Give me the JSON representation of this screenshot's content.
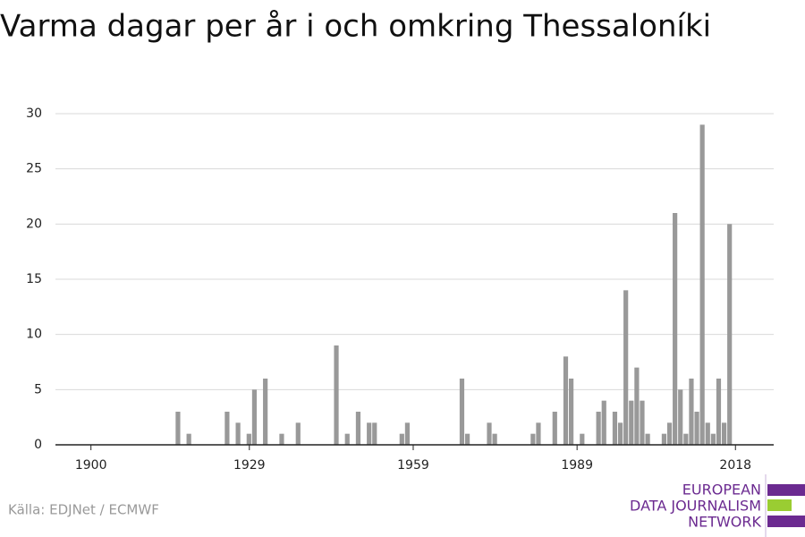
{
  "chart_data": {
    "type": "bar",
    "title": "Varma dagar per år i och omkring Thessaloníki",
    "source": "Källa: EDJNet / ECMWF",
    "logo": [
      "EUROPEAN",
      "DATA JOURNALISM",
      "NETWORK"
    ],
    "x": [
      1916,
      1918,
      1925,
      1927,
      1929,
      1930,
      1932,
      1935,
      1938,
      1945,
      1947,
      1949,
      1951,
      1952,
      1957,
      1958,
      1968,
      1969,
      1973,
      1974,
      1981,
      1982,
      1985,
      1987,
      1988,
      1990,
      1993,
      1994,
      1996,
      1997,
      1998,
      1999,
      2000,
      2001,
      2002,
      2005,
      2006,
      2007,
      2008,
      2009,
      2010,
      2011,
      2012,
      2013,
      2014,
      2015,
      2016,
      2017
    ],
    "values": [
      3,
      1,
      3,
      2,
      1,
      5,
      6,
      1,
      2,
      9,
      1,
      3,
      2,
      2,
      1,
      2,
      6,
      1,
      2,
      1,
      1,
      2,
      3,
      8,
      6,
      1,
      3,
      4,
      3,
      2,
      14,
      4,
      7,
      4,
      1,
      1,
      2,
      21,
      5,
      1,
      6,
      3,
      29,
      2,
      1,
      6,
      2,
      20
    ],
    "color": "#999999",
    "xlim": [
      1893.5,
      2025
    ],
    "xticks": [
      1900,
      1929,
      1959,
      1989,
      2018
    ],
    "ylim": [
      0,
      30
    ],
    "yticks": [
      0,
      5,
      10,
      15,
      20,
      25,
      30
    ],
    "grid": true
  }
}
